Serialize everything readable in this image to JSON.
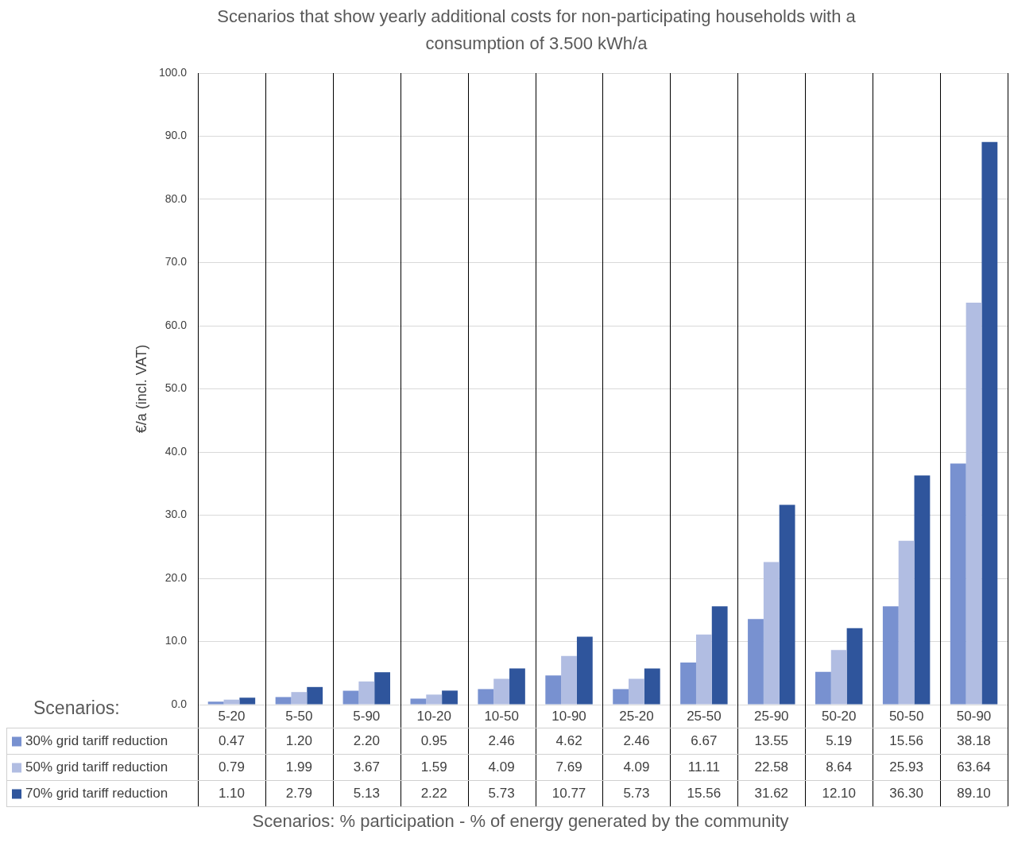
{
  "chart_data": {
    "type": "bar",
    "title": "Scenarios that show yearly additional costs for non-participating households with a consumption of 3.500 kWh/a",
    "xlabel": "Scenarios: % participation - % of energy generated by the community",
    "ylabel": "€/a (incl. VAT)",
    "annotations": [
      "Scenarios:"
    ],
    "categories": [
      "5-20",
      "5-50",
      "5-90",
      "10-20",
      "10-50",
      "10-90",
      "25-20",
      "25-50",
      "25-90",
      "50-20",
      "50-50",
      "50-90"
    ],
    "series": [
      {
        "name": "30% grid tariff reduction",
        "color": "#7891d0",
        "values": [
          0.47,
          1.2,
          2.2,
          0.95,
          2.46,
          4.62,
          2.46,
          6.67,
          13.55,
          5.19,
          15.56,
          38.18
        ],
        "value_labels": [
          "0.47",
          "1.20",
          "2.20",
          "0.95",
          "2.46",
          "4.62",
          "2.46",
          "6.67",
          "13.55",
          "5.19",
          "15.56",
          "38.18"
        ]
      },
      {
        "name": "50% grid tariff reduction",
        "color": "#b1bde2",
        "values": [
          0.79,
          1.99,
          3.67,
          1.59,
          4.09,
          7.69,
          4.09,
          11.11,
          22.58,
          8.64,
          25.93,
          63.64
        ],
        "value_labels": [
          "0.79",
          "1.99",
          "3.67",
          "1.59",
          "4.09",
          "7.69",
          "4.09",
          "11.11",
          "22.58",
          "8.64",
          "25.93",
          "63.64"
        ]
      },
      {
        "name": "70% grid tariff reduction",
        "color": "#2f559c",
        "values": [
          1.1,
          2.79,
          5.13,
          2.22,
          5.73,
          10.77,
          5.73,
          15.56,
          31.62,
          12.1,
          36.3,
          89.1
        ],
        "value_labels": [
          "1.10",
          "2.79",
          "5.13",
          "2.22",
          "5.73",
          "10.77",
          "5.73",
          "15.56",
          "31.62",
          "12.10",
          "36.30",
          "89.10"
        ]
      }
    ],
    "ylim": [
      0,
      100
    ],
    "yticks": [
      {
        "value": 0,
        "label": "0.0"
      },
      {
        "value": 10,
        "label": "10.0"
      },
      {
        "value": 20,
        "label": "20.0"
      },
      {
        "value": 30,
        "label": "30.0"
      },
      {
        "value": 40,
        "label": "40.0"
      },
      {
        "value": 50,
        "label": "50.0"
      },
      {
        "value": 60,
        "label": "60.0"
      },
      {
        "value": 70,
        "label": "70.0"
      },
      {
        "value": 80,
        "label": "80.0"
      },
      {
        "value": 90,
        "label": "90.0"
      },
      {
        "value": 100,
        "label": "100.0"
      }
    ],
    "grid": true,
    "legend": "bottom left"
  }
}
